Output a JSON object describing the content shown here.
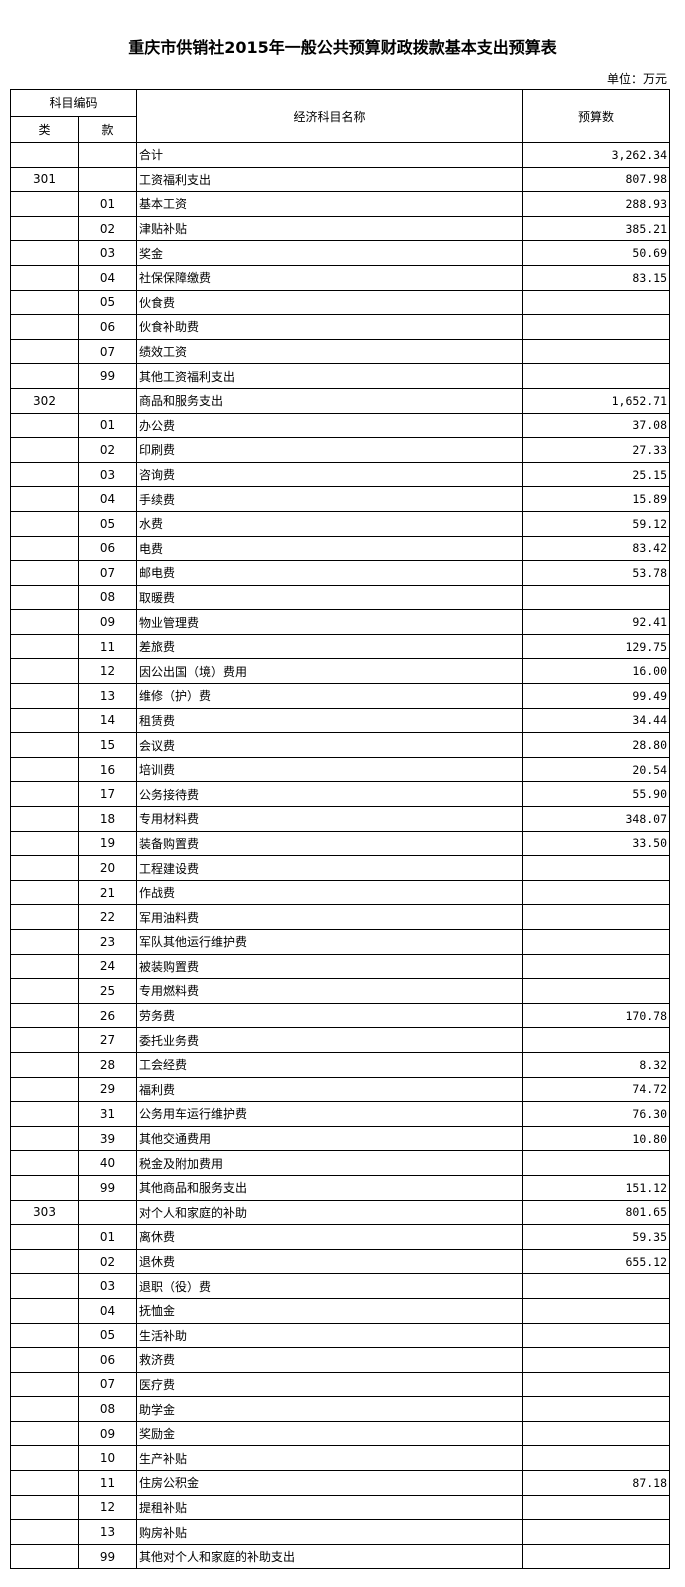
{
  "title": "重庆市供销社2015年一般公共预算财政拨款基本支出预算表",
  "unit": "单位：万元",
  "headers": {
    "code_group": "科目编码",
    "class": "类",
    "item": "款",
    "name": "经济科目名称",
    "amount": "预算数"
  },
  "rows": [
    {
      "class": "",
      "item": "",
      "name": "合计",
      "amount": "3,262.34"
    },
    {
      "class": "301",
      "item": "",
      "name": "工资福利支出",
      "amount": "807.98"
    },
    {
      "class": "",
      "item": "01",
      "name": "基本工资",
      "amount": "288.93"
    },
    {
      "class": "",
      "item": "02",
      "name": "津贴补贴",
      "amount": "385.21"
    },
    {
      "class": "",
      "item": "03",
      "name": "奖金",
      "amount": "50.69"
    },
    {
      "class": "",
      "item": "04",
      "name": "社保保障缴费",
      "amount": "83.15"
    },
    {
      "class": "",
      "item": "05",
      "name": "伙食费",
      "amount": ""
    },
    {
      "class": "",
      "item": "06",
      "name": "伙食补助费",
      "amount": ""
    },
    {
      "class": "",
      "item": "07",
      "name": "绩效工资",
      "amount": ""
    },
    {
      "class": "",
      "item": "99",
      "name": "其他工资福利支出",
      "amount": ""
    },
    {
      "class": "302",
      "item": "",
      "name": "商品和服务支出",
      "amount": "1,652.71"
    },
    {
      "class": "",
      "item": "01",
      "name": "办公费",
      "amount": "37.08"
    },
    {
      "class": "",
      "item": "02",
      "name": "印刷费",
      "amount": "27.33"
    },
    {
      "class": "",
      "item": "03",
      "name": "咨询费",
      "amount": "25.15"
    },
    {
      "class": "",
      "item": "04",
      "name": "手续费",
      "amount": "15.89"
    },
    {
      "class": "",
      "item": "05",
      "name": "水费",
      "amount": "59.12"
    },
    {
      "class": "",
      "item": "06",
      "name": "电费",
      "amount": "83.42"
    },
    {
      "class": "",
      "item": "07",
      "name": "邮电费",
      "amount": "53.78"
    },
    {
      "class": "",
      "item": "08",
      "name": "取暖费",
      "amount": ""
    },
    {
      "class": "",
      "item": "09",
      "name": "物业管理费",
      "amount": "92.41"
    },
    {
      "class": "",
      "item": "11",
      "name": "差旅费",
      "amount": "129.75"
    },
    {
      "class": "",
      "item": "12",
      "name": "因公出国（境）费用",
      "amount": "16.00"
    },
    {
      "class": "",
      "item": "13",
      "name": "维修（护）费",
      "amount": "99.49"
    },
    {
      "class": "",
      "item": "14",
      "name": "租赁费",
      "amount": "34.44"
    },
    {
      "class": "",
      "item": "15",
      "name": "会议费",
      "amount": "28.80"
    },
    {
      "class": "",
      "item": "16",
      "name": "培训费",
      "amount": "20.54"
    },
    {
      "class": "",
      "item": "17",
      "name": "公务接待费",
      "amount": "55.90"
    },
    {
      "class": "",
      "item": "18",
      "name": "专用材料费",
      "amount": "348.07"
    },
    {
      "class": "",
      "item": "19",
      "name": "装备购置费",
      "amount": "33.50"
    },
    {
      "class": "",
      "item": "20",
      "name": "工程建设费",
      "amount": ""
    },
    {
      "class": "",
      "item": "21",
      "name": "作战费",
      "amount": ""
    },
    {
      "class": "",
      "item": "22",
      "name": "军用油料费",
      "amount": ""
    },
    {
      "class": "",
      "item": "23",
      "name": "军队其他运行维护费",
      "amount": ""
    },
    {
      "class": "",
      "item": "24",
      "name": "被装购置费",
      "amount": ""
    },
    {
      "class": "",
      "item": "25",
      "name": "专用燃料费",
      "amount": ""
    },
    {
      "class": "",
      "item": "26",
      "name": "劳务费",
      "amount": "170.78"
    },
    {
      "class": "",
      "item": "27",
      "name": "委托业务费",
      "amount": ""
    },
    {
      "class": "",
      "item": "28",
      "name": "工会经费",
      "amount": "8.32"
    },
    {
      "class": "",
      "item": "29",
      "name": "福利费",
      "amount": "74.72"
    },
    {
      "class": "",
      "item": "31",
      "name": "公务用车运行维护费",
      "amount": "76.30"
    },
    {
      "class": "",
      "item": "39",
      "name": "其他交通费用",
      "amount": "10.80"
    },
    {
      "class": "",
      "item": "40",
      "name": "税金及附加费用",
      "amount": ""
    },
    {
      "class": "",
      "item": "99",
      "name": "其他商品和服务支出",
      "amount": "151.12"
    },
    {
      "class": "303",
      "item": "",
      "name": "对个人和家庭的补助",
      "amount": "801.65"
    },
    {
      "class": "",
      "item": "01",
      "name": "离休费",
      "amount": "59.35"
    },
    {
      "class": "",
      "item": "02",
      "name": "退休费",
      "amount": "655.12"
    },
    {
      "class": "",
      "item": "03",
      "name": "退职（役）费",
      "amount": ""
    },
    {
      "class": "",
      "item": "04",
      "name": "抚恤金",
      "amount": ""
    },
    {
      "class": "",
      "item": "05",
      "name": "生活补助",
      "amount": ""
    },
    {
      "class": "",
      "item": "06",
      "name": "救济费",
      "amount": ""
    },
    {
      "class": "",
      "item": "07",
      "name": "医疗费",
      "amount": ""
    },
    {
      "class": "",
      "item": "08",
      "name": "助学金",
      "amount": ""
    },
    {
      "class": "",
      "item": "09",
      "name": "奖励金",
      "amount": ""
    },
    {
      "class": "",
      "item": "10",
      "name": "生产补贴",
      "amount": ""
    },
    {
      "class": "",
      "item": "11",
      "name": "住房公积金",
      "amount": "87.18"
    },
    {
      "class": "",
      "item": "12",
      "name": "提租补贴",
      "amount": ""
    },
    {
      "class": "",
      "item": "13",
      "name": "购房补贴",
      "amount": ""
    },
    {
      "class": "",
      "item": "99",
      "name": "其他对个人和家庭的补助支出",
      "amount": ""
    }
  ]
}
